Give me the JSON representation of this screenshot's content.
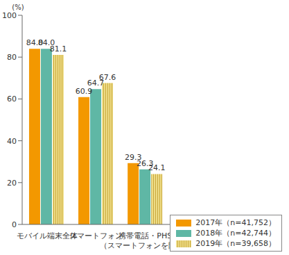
{
  "chart_data": {
    "type": "bar",
    "ylabel": "(%)",
    "categories": [
      "モバイル端末全体",
      "スマートフォン",
      "携帯電話・PHS\n（スマートフォンを除く）"
    ],
    "series": [
      {
        "name": "2017年（n=41,752）",
        "color": "#f39800",
        "values": [
          84.0,
          60.9,
          29.3
        ],
        "value_labels": [
          "84.0",
          "60.9",
          "29.3"
        ]
      },
      {
        "name": "2018年（n=42,744）",
        "color": "#5fb7a5",
        "values": [
          84.0,
          64.7,
          26.3
        ],
        "value_labels": [
          "84.0",
          "64.7",
          "26.3"
        ]
      },
      {
        "name": "2019年（n=39,658）",
        "color": "#eedc86",
        "values": [
          81.1,
          67.6,
          24.1
        ],
        "value_labels": [
          "81.1",
          "67.6",
          "24.1"
        ]
      }
    ],
    "ylim": [
      0,
      100
    ],
    "yticks": [
      0,
      20,
      40,
      60,
      80,
      100
    ],
    "grid": false,
    "data_labels": true,
    "legend": "lower-right"
  }
}
